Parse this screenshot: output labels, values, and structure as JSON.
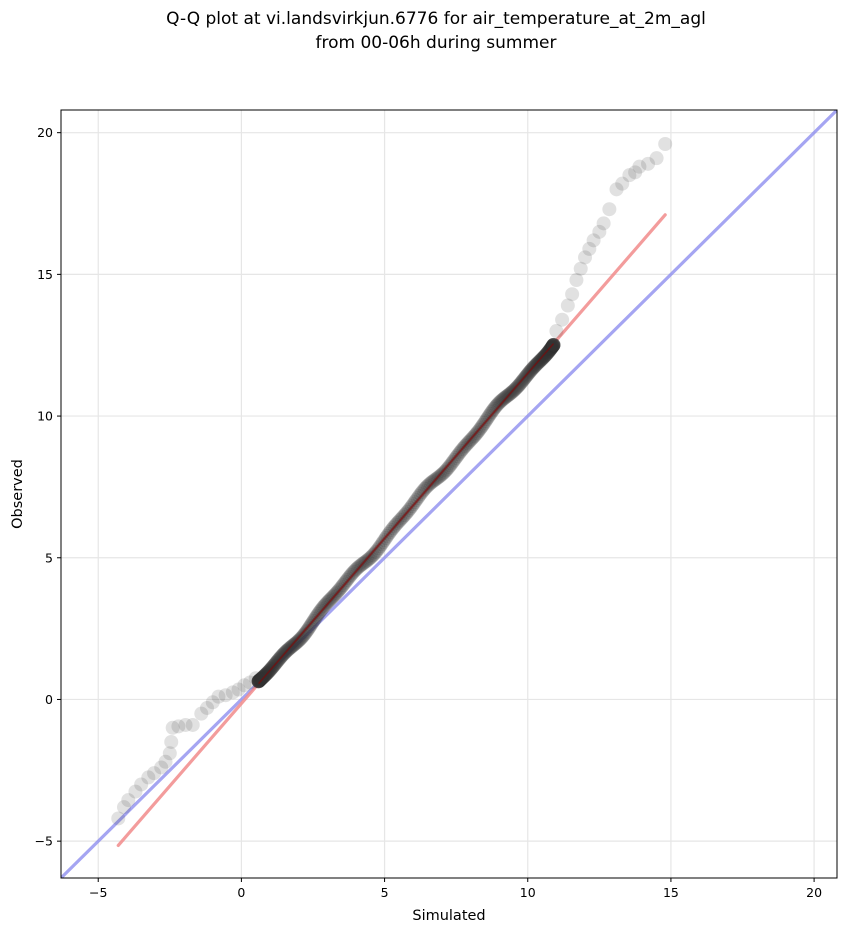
{
  "chart_data": {
    "type": "scatter",
    "title_line1": "Q-Q plot at vi.landsvirkjun.6776 for air_temperature_at_2m_agl",
    "title_line2": "from 00-06h during summer",
    "xlabel": "Simulated",
    "ylabel": "Observed",
    "xlim": [
      -6.3,
      20.8
    ],
    "ylim": [
      -6.3,
      20.8
    ],
    "xticks": [
      -5,
      0,
      5,
      10,
      15,
      20
    ],
    "yticks": [
      -5,
      0,
      5,
      10,
      15,
      20
    ],
    "xtick_labels": [
      "−5",
      "0",
      "5",
      "10",
      "15",
      "20"
    ],
    "ytick_labels": [
      "−5",
      "0",
      "5",
      "10",
      "15",
      "20"
    ],
    "grid": true,
    "colors": {
      "points": "#333333",
      "identity_line": "#8888ee",
      "fit_line": "#f28b8b",
      "fit_core": "#8b0000"
    },
    "series": [
      {
        "kind": "quantiles",
        "points": [
          [
            -4.3,
            -4.2
          ],
          [
            -4.1,
            -3.8
          ],
          [
            -3.95,
            -3.55
          ],
          [
            -3.7,
            -3.25
          ],
          [
            -3.5,
            -3.0
          ],
          [
            -3.25,
            -2.75
          ],
          [
            -3.05,
            -2.6
          ],
          [
            -2.8,
            -2.4
          ],
          [
            -2.65,
            -2.2
          ],
          [
            -2.5,
            -1.9
          ],
          [
            -2.45,
            -1.5
          ],
          [
            -2.4,
            -1.0
          ],
          [
            -2.2,
            -0.95
          ],
          [
            -1.95,
            -0.9
          ],
          [
            -1.7,
            -0.9
          ],
          [
            -1.4,
            -0.5
          ],
          [
            -1.2,
            -0.3
          ],
          [
            -1.0,
            -0.1
          ],
          [
            -0.8,
            0.1
          ],
          [
            -0.55,
            0.15
          ],
          [
            -0.3,
            0.25
          ],
          [
            -0.1,
            0.35
          ],
          [
            0.1,
            0.5
          ],
          [
            0.3,
            0.6
          ],
          [
            0.5,
            0.75
          ],
          [
            11.0,
            13.0
          ],
          [
            11.2,
            13.4
          ],
          [
            11.4,
            13.9
          ],
          [
            11.55,
            14.3
          ],
          [
            11.7,
            14.8
          ],
          [
            11.85,
            15.2
          ],
          [
            12.0,
            15.6
          ],
          [
            12.15,
            15.9
          ],
          [
            12.3,
            16.2
          ],
          [
            12.5,
            16.5
          ],
          [
            12.65,
            16.8
          ],
          [
            12.85,
            17.3
          ],
          [
            13.1,
            18.0
          ],
          [
            13.3,
            18.2
          ],
          [
            13.55,
            18.5
          ],
          [
            13.75,
            18.6
          ],
          [
            13.9,
            18.8
          ],
          [
            14.2,
            18.9
          ],
          [
            14.5,
            19.1
          ],
          [
            14.8,
            19.6
          ]
        ],
        "body_x_range": [
          0.6,
          10.9
        ]
      },
      {
        "kind": "identity",
        "x": [
          -6.3,
          20.8
        ],
        "y": [
          -6.3,
          20.8
        ]
      },
      {
        "kind": "fit",
        "x": [
          -4.3,
          14.8
        ],
        "y": [
          -5.15,
          17.1
        ]
      }
    ]
  }
}
